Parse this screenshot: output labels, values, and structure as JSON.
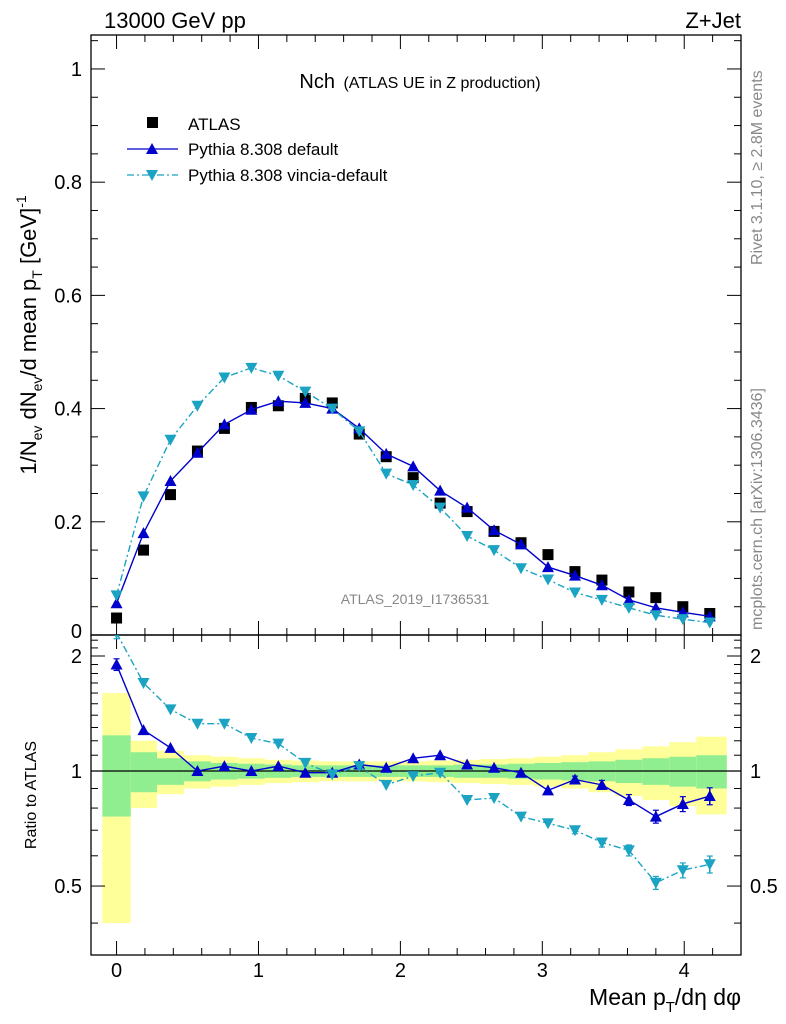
{
  "header": {
    "left": "13000 GeV pp",
    "right": "Z+Jet"
  },
  "side_labels": {
    "rivet": "Rivet 3.1.10, ≥ 2.8M events",
    "mcplots": "mcplots.cern.ch [arXiv:1306.3436]"
  },
  "chart_data": {
    "type": "scatter",
    "title_main": "Nch",
    "title_sub": "(ATLAS UE in Z production)",
    "watermark": "ATLAS_2019_I1736531",
    "xlabel": "Mean p_T/dη dφ",
    "ylabel": "1/N_ev dN_ev/d mean p_T [GeV]^-1",
    "ratio_ylabel": "Ratio to ATLAS",
    "xlim": [
      -0.18,
      4.4
    ],
    "ylim": [
      0,
      1.06
    ],
    "ratio_ylim": [
      0.33,
      2.27
    ],
    "x_ticks": [
      "0",
      "1",
      "2",
      "3",
      "4"
    ],
    "y_ticks": [
      "0",
      "0.2",
      "0.4",
      "0.6",
      "0.8",
      "1"
    ],
    "ratio_ticks": [
      "0.5",
      "1",
      "2"
    ],
    "legend_position": "top-left",
    "x": [
      0.0,
      0.19,
      0.38,
      0.57,
      0.76,
      0.95,
      1.14,
      1.33,
      1.52,
      1.71,
      1.9,
      2.09,
      2.28,
      2.47,
      2.66,
      2.85,
      3.04,
      3.23,
      3.42,
      3.61,
      3.8,
      3.99,
      4.18
    ],
    "band_edges": [
      -0.1,
      0.1,
      0.285,
      0.475,
      0.665,
      0.855,
      1.045,
      1.235,
      1.425,
      1.615,
      1.805,
      1.995,
      2.185,
      2.375,
      2.565,
      2.755,
      2.945,
      3.135,
      3.325,
      3.515,
      3.705,
      3.895,
      4.085,
      4.3
    ],
    "band_green": [
      0.24,
      0.12,
      0.08,
      0.06,
      0.05,
      0.045,
      0.04,
      0.035,
      0.035,
      0.035,
      0.035,
      0.035,
      0.035,
      0.04,
      0.04,
      0.045,
      0.05,
      0.055,
      0.06,
      0.07,
      0.08,
      0.09,
      0.1
    ],
    "band_yellow": [
      0.6,
      0.2,
      0.13,
      0.1,
      0.09,
      0.08,
      0.07,
      0.065,
      0.06,
      0.06,
      0.06,
      0.06,
      0.065,
      0.07,
      0.075,
      0.08,
      0.09,
      0.1,
      0.12,
      0.14,
      0.16,
      0.19,
      0.23
    ],
    "series": [
      {
        "name": "ATLAS",
        "color": "#000000",
        "marker": "square",
        "values": [
          0.03,
          0.15,
          0.248,
          0.325,
          0.365,
          0.402,
          0.405,
          0.418,
          0.41,
          0.355,
          0.315,
          0.278,
          0.233,
          0.218,
          0.183,
          0.163,
          0.142,
          0.112,
          0.097,
          0.076,
          0.066,
          0.05,
          0.038
        ]
      },
      {
        "name": "Pythia 8.308 default",
        "color": "#0000cc",
        "marker": "triangle-up",
        "line": "solid",
        "values": [
          0.056,
          0.18,
          0.272,
          0.322,
          0.372,
          0.398,
          0.413,
          0.41,
          0.4,
          0.365,
          0.32,
          0.298,
          0.255,
          0.225,
          0.185,
          0.16,
          0.12,
          0.105,
          0.088,
          0.062,
          0.048,
          0.04,
          0.033
        ],
        "ratio": [
          1.9,
          1.28,
          1.15,
          1.0,
          1.03,
          1.0,
          1.03,
          0.99,
          0.99,
          1.04,
          1.02,
          1.08,
          1.1,
          1.04,
          1.02,
          0.99,
          0.89,
          0.95,
          0.92,
          0.84,
          0.76,
          0.82,
          0.86
        ]
      },
      {
        "name": "Pythia 8.308 vincia-default",
        "color": "#1aa3c2",
        "marker": "triangle-down",
        "line": "dashdot",
        "values": [
          0.07,
          0.245,
          0.345,
          0.405,
          0.455,
          0.472,
          0.458,
          0.43,
          0.4,
          0.36,
          0.285,
          0.265,
          0.225,
          0.175,
          0.15,
          0.118,
          0.098,
          0.075,
          0.062,
          0.048,
          0.035,
          0.028,
          0.022
        ],
        "ratio": [
          2.3,
          1.7,
          1.45,
          1.33,
          1.33,
          1.22,
          1.18,
          1.05,
          0.98,
          1.03,
          0.92,
          0.97,
          0.99,
          0.84,
          0.85,
          0.76,
          0.73,
          0.7,
          0.65,
          0.62,
          0.51,
          0.55,
          0.57
        ]
      }
    ]
  }
}
